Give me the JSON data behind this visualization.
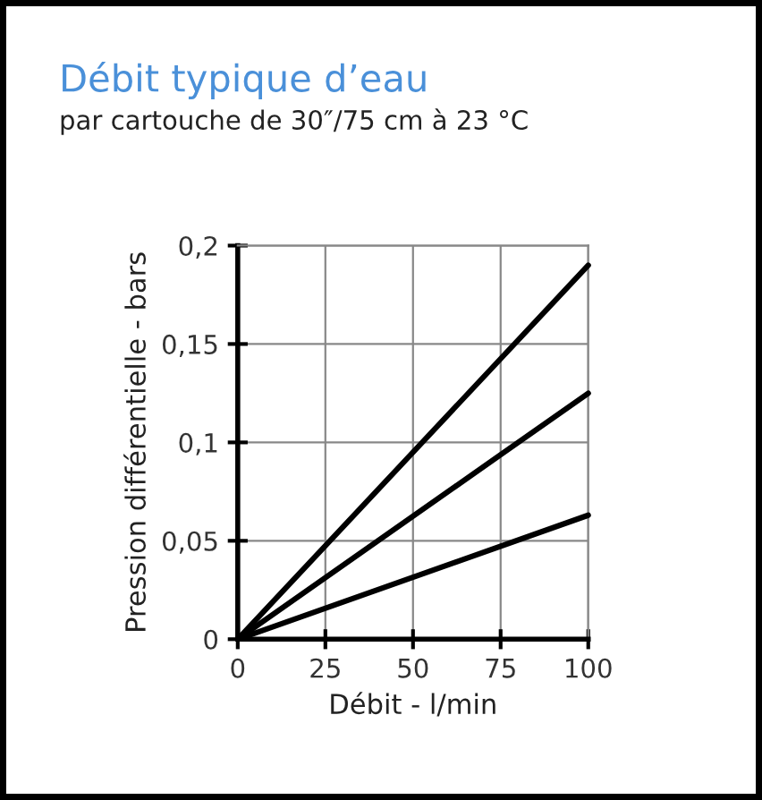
{
  "chart_data": {
    "type": "line",
    "title": "Débit typique d’eau",
    "subtitle": "par cartouche de 30″/75 cm à 23 °C",
    "xlabel": "Débit - l/min",
    "ylabel": "Pression différentielle - bars",
    "series": [
      {
        "color": "#000000",
        "values": [
          0,
          0.19
        ]
      },
      {
        "color": "#000000",
        "values": [
          0,
          0.125
        ]
      },
      {
        "color": "#000000",
        "values": [
          0,
          0.063
        ]
      }
    ],
    "x": [
      0,
      100
    ],
    "xlim": [
      0,
      100
    ],
    "ylim": [
      0,
      0.2
    ],
    "xticks": [
      0,
      25,
      50,
      75,
      100
    ],
    "yticks": [
      0,
      {
        "value": 0.05,
        "label": "0,05"
      },
      {
        "value": 0.1,
        "label": "0,1"
      },
      {
        "value": 0.15,
        "label": "0,15"
      },
      {
        "value": 0.2,
        "label": "0,2"
      }
    ],
    "grid": true,
    "legend": false,
    "line_style": "solid"
  }
}
